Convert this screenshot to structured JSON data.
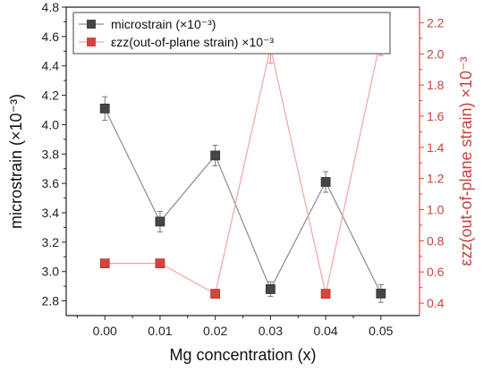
{
  "chart_data": {
    "type": "line",
    "xlabel": "Mg concentration (x)",
    "ylabel": "microstrain (×10⁻³)",
    "ylabel_right": "εzz(out-of-plane strain) ×10⁻³",
    "x": [
      0.0,
      0.01,
      0.02,
      0.03,
      0.04,
      0.05
    ],
    "x_tick_labels": [
      "0.00",
      "0.01",
      "0.02",
      "0.03",
      "0.04",
      "0.05"
    ],
    "xlim": [
      -0.007,
      0.057
    ],
    "ylim": [
      2.7,
      4.8
    ],
    "y_ticks": [
      2.8,
      3.0,
      3.2,
      3.4,
      3.6,
      3.8,
      4.0,
      4.2,
      4.4,
      4.6,
      4.8
    ],
    "y_tick_labels": [
      "2.8",
      "3.0",
      "3.2",
      "3.4",
      "3.6",
      "3.8",
      "4.0",
      "4.2",
      "4.4",
      "4.6",
      "4.8"
    ],
    "ylim_right": [
      0.32,
      2.3
    ],
    "y_ticks_right": [
      0.4,
      0.6,
      0.8,
      1.0,
      1.2,
      1.4,
      1.6,
      1.8,
      2.0,
      2.2
    ],
    "y_tick_labels_right": [
      "0.4",
      "0.6",
      "0.8",
      "1.0",
      "1.2",
      "1.4",
      "1.6",
      "1.8",
      "2.0",
      "2.2"
    ],
    "grid": false,
    "legend_position": "top-left",
    "series": [
      {
        "name": "microstrain (×10⁻³)",
        "axis": "left",
        "marker": "square",
        "color": "#454545",
        "line_color": "#8c8c8c",
        "values": [
          4.11,
          3.34,
          3.79,
          2.88,
          3.61,
          2.85
        ],
        "errors": [
          0.08,
          0.07,
          0.07,
          0.05,
          0.07,
          0.06
        ]
      },
      {
        "name": "εzz(out-of-plane strain) ×10⁻³",
        "axis": "right",
        "marker": "square",
        "color": "#d6453d",
        "line_color": "#f2a6a1",
        "values": [
          0.655,
          0.655,
          0.46,
          2.04,
          0.46,
          2.1
        ],
        "errors": [
          0.02,
          0.02,
          0.01,
          0.1,
          0.01,
          0.11
        ]
      }
    ]
  }
}
